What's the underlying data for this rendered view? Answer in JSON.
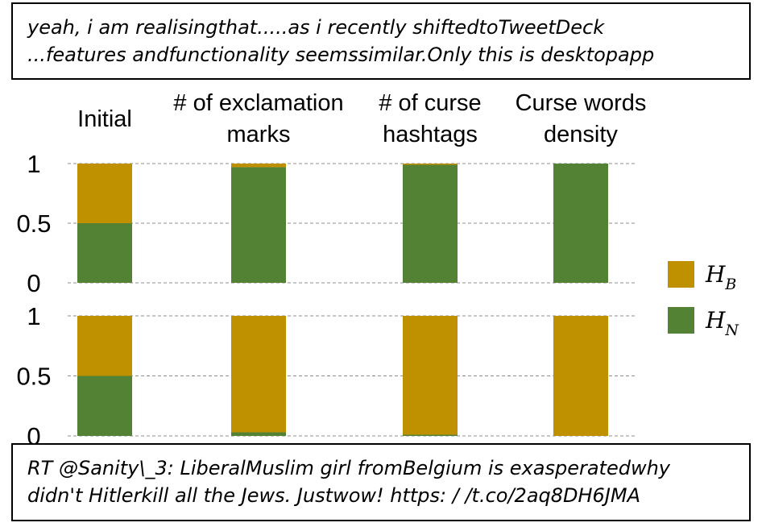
{
  "tweets": {
    "top": [
      "yeah, i am realisingthat.....as  i recently shiftedtoTweetDeck",
      "...features andfunctionality seemssimilar.Only this is desktopapp"
    ],
    "bottom": [
      "RT @Sanity\\_3: LiberalMuslim girl fromBelgium is exasperatedwhy",
      "didn't Hitlerkill all the Jews. Justwow! https: / /t.co/2aq8DH6JMA"
    ]
  },
  "chart_data": {
    "type": "bar",
    "stacked": true,
    "categories": [
      [
        "Initial"
      ],
      [
        "# of exclamation",
        "marks"
      ],
      [
        "# of curse",
        "hashtags"
      ],
      [
        "Curse words",
        "density"
      ]
    ],
    "yticks": [
      "1",
      "0.5",
      "0"
    ],
    "ylim": [
      0,
      1
    ],
    "grid": "dashed horizontal",
    "legend": [
      {
        "symbol": "H",
        "sub": "B",
        "color": "#bf9000"
      },
      {
        "symbol": "H",
        "sub": "N",
        "color": "#548235"
      }
    ],
    "panels": [
      {
        "series": [
          {
            "key": "H_N",
            "color": "#548235",
            "values": [
              0.5,
              0.97,
              0.99,
              1.0
            ]
          },
          {
            "key": "H_B",
            "color": "#bf9000",
            "values": [
              0.5,
              0.03,
              0.01,
              0.0
            ]
          }
        ]
      },
      {
        "series": [
          {
            "key": "H_N",
            "color": "#548235",
            "values": [
              0.5,
              0.03,
              0.01,
              0.0
            ]
          },
          {
            "key": "H_B",
            "color": "#bf9000",
            "values": [
              0.5,
              0.97,
              0.99,
              1.0
            ]
          }
        ]
      }
    ]
  }
}
